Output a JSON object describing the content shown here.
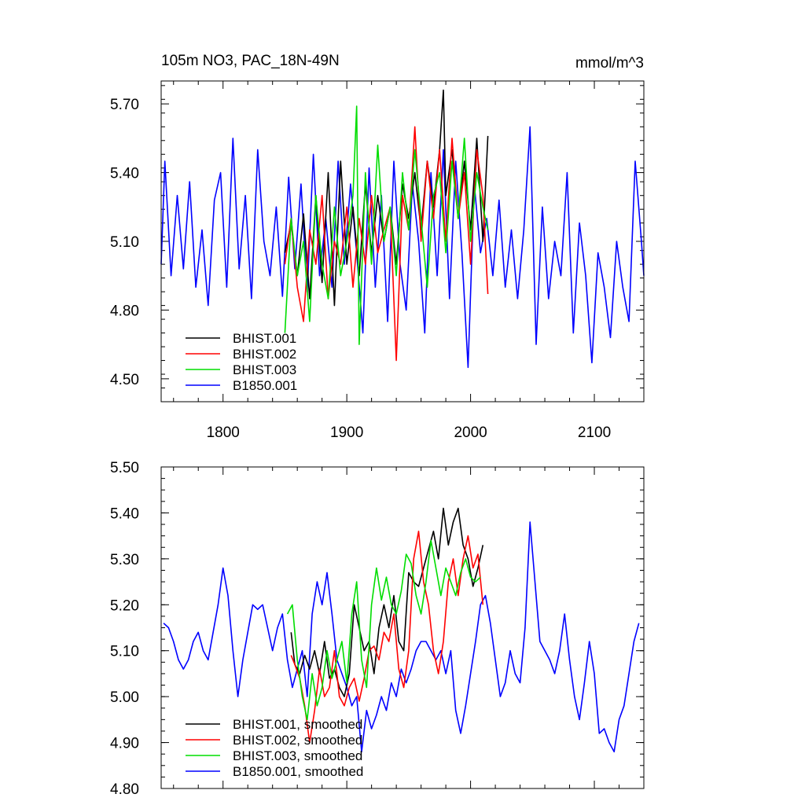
{
  "chart_data": [
    {
      "type": "line",
      "title": "105m NO3, PAC_18N-49N",
      "units": "mmol/m^3",
      "xlim": [
        1750,
        2140
      ],
      "ylim": [
        4.4,
        5.8
      ],
      "x_ticks": [
        1800,
        1900,
        2000,
        2100
      ],
      "x_tick_labels": [
        "1800",
        "1900",
        "2000",
        "2100"
      ],
      "y_ticks": [
        4.5,
        4.8,
        5.1,
        5.4,
        5.7
      ],
      "y_tick_labels": [
        "4.50",
        "4.80",
        "5.10",
        "5.40",
        "5.70"
      ],
      "legend_position": "bottom-left",
      "colors": {
        "BHIST.001": "#000000",
        "BHIST.002": "#ff0000",
        "BHIST.003": "#00dd00",
        "B1850.001": "#0000ff"
      },
      "series": [
        {
          "name": "BHIST.001",
          "color": "#000000",
          "x": [
            1850,
            1855,
            1860,
            1865,
            1870,
            1875,
            1880,
            1885,
            1890,
            1895,
            1900,
            1905,
            1910,
            1915,
            1920,
            1925,
            1930,
            1935,
            1940,
            1945,
            1950,
            1955,
            1960,
            1965,
            1970,
            1975,
            1978,
            1980,
            1985,
            1990,
            1995,
            2000,
            2005,
            2010,
            2014
          ],
          "values": [
            5.05,
            5.18,
            4.95,
            5.22,
            4.85,
            5.3,
            4.92,
            5.4,
            4.82,
            5.45,
            5.0,
            5.25,
            4.95,
            5.35,
            5.05,
            5.3,
            5.1,
            5.25,
            5.0,
            5.35,
            5.2,
            5.4,
            5.15,
            5.45,
            5.25,
            5.5,
            5.76,
            5.3,
            5.5,
            5.2,
            5.45,
            5.15,
            5.55,
            5.1,
            5.56
          ]
        },
        {
          "name": "BHIST.002",
          "color": "#ff0000",
          "x": [
            1850,
            1855,
            1860,
            1865,
            1870,
            1875,
            1880,
            1885,
            1890,
            1895,
            1900,
            1905,
            1910,
            1915,
            1920,
            1925,
            1930,
            1935,
            1940,
            1945,
            1950,
            1955,
            1960,
            1965,
            1970,
            1975,
            1980,
            1985,
            1990,
            1995,
            2000,
            2005,
            2010,
            2014
          ],
          "values": [
            5.0,
            5.2,
            4.9,
            4.75,
            5.15,
            5.0,
            5.3,
            4.85,
            5.1,
            5.0,
            5.25,
            4.9,
            5.2,
            5.0,
            5.3,
            5.05,
            5.15,
            5.25,
            4.58,
            5.3,
            5.15,
            5.6,
            5.1,
            5.45,
            5.2,
            5.5,
            5.1,
            5.55,
            5.2,
            5.4,
            5.0,
            5.5,
            5.3,
            4.87
          ]
        },
        {
          "name": "BHIST.003",
          "color": "#00dd00",
          "x": [
            1850,
            1855,
            1860,
            1865,
            1870,
            1875,
            1880,
            1885,
            1890,
            1895,
            1900,
            1905,
            1908,
            1910,
            1915,
            1920,
            1925,
            1930,
            1935,
            1940,
            1945,
            1950,
            1955,
            1960,
            1965,
            1970,
            1975,
            1980,
            1985,
            1990,
            1995,
            2000,
            2005,
            2010,
            2014
          ],
          "values": [
            4.7,
            5.2,
            4.95,
            5.1,
            4.75,
            5.3,
            5.0,
            4.85,
            5.25,
            4.95,
            5.1,
            5.3,
            5.69,
            4.65,
            5.4,
            5.0,
            5.52,
            5.1,
            5.25,
            4.95,
            5.4,
            5.15,
            5.5,
            5.2,
            4.9,
            5.3,
            5.4,
            5.05,
            5.45,
            5.2,
            5.55,
            5.1,
            5.4,
            5.25,
            5.15
          ]
        },
        {
          "name": "B1850.001",
          "color": "#0000ff",
          "x": [
            1750,
            1753,
            1758,
            1763,
            1768,
            1773,
            1778,
            1783,
            1788,
            1793,
            1798,
            1803,
            1808,
            1813,
            1818,
            1823,
            1828,
            1833,
            1838,
            1843,
            1848,
            1853,
            1858,
            1863,
            1868,
            1873,
            1878,
            1883,
            1888,
            1893,
            1898,
            1903,
            1908,
            1913,
            1918,
            1923,
            1928,
            1933,
            1938,
            1943,
            1948,
            1953,
            1958,
            1963,
            1968,
            1973,
            1978,
            1983,
            1988,
            1993,
            1998,
            2003,
            2008,
            2013,
            2018,
            2023,
            2028,
            2033,
            2038,
            2043,
            2048,
            2053,
            2058,
            2063,
            2068,
            2073,
            2078,
            2083,
            2088,
            2093,
            2098,
            2103,
            2108,
            2113,
            2118,
            2123,
            2128,
            2133,
            2138,
            2140
          ],
          "values": [
            5.0,
            5.45,
            4.95,
            5.3,
            4.98,
            5.36,
            4.9,
            5.15,
            4.82,
            5.28,
            5.4,
            4.9,
            5.55,
            4.98,
            5.3,
            4.85,
            5.5,
            5.1,
            4.95,
            5.25,
            4.86,
            5.38,
            4.98,
            5.35,
            4.88,
            5.48,
            4.95,
            5.2,
            4.9,
            5.45,
            5.0,
            5.35,
            5.05,
            4.7,
            5.42,
            4.9,
            5.3,
            4.75,
            5.45,
            5.0,
            4.8,
            5.35,
            5.1,
            4.7,
            5.4,
            4.95,
            5.5,
            4.85,
            5.45,
            5.05,
            4.55,
            5.35,
            5.05,
            5.2,
            4.95,
            5.28,
            4.9,
            5.15,
            4.85,
            5.15,
            5.6,
            4.65,
            5.25,
            4.85,
            5.1,
            4.95,
            5.4,
            4.7,
            5.18,
            4.95,
            4.57,
            5.05,
            4.9,
            4.68,
            5.1,
            4.9,
            4.75,
            5.45,
            5.1,
            4.95
          ]
        }
      ],
      "legend": [
        "BHIST.001",
        "BHIST.002",
        "BHIST.003",
        "B1850.001"
      ]
    },
    {
      "type": "line",
      "title": "",
      "xlim": [
        1750,
        2140
      ],
      "ylim": [
        4.8,
        5.5
      ],
      "x_ticks": [
        1800,
        1900,
        2000,
        2100
      ],
      "y_ticks": [
        4.8,
        4.9,
        5.0,
        5.1,
        5.2,
        5.3,
        5.4,
        5.5
      ],
      "y_tick_labels": [
        "4.80",
        "4.90",
        "5.00",
        "5.10",
        "5.20",
        "5.30",
        "5.40",
        "5.50"
      ],
      "legend_position": "bottom-left",
      "series": [
        {
          "name": "BHIST.001, smoothed",
          "color": "#000000",
          "x": [
            1855,
            1858,
            1862,
            1866,
            1870,
            1874,
            1878,
            1882,
            1886,
            1890,
            1894,
            1898,
            1902,
            1906,
            1910,
            1914,
            1918,
            1922,
            1926,
            1930,
            1934,
            1938,
            1942,
            1946,
            1950,
            1954,
            1958,
            1962,
            1966,
            1970,
            1974,
            1978,
            1982,
            1986,
            1990,
            1994,
            1998,
            2002,
            2006,
            2010
          ],
          "values": [
            5.14,
            5.07,
            5.05,
            5.09,
            5.06,
            5.1,
            5.05,
            5.12,
            5.04,
            5.06,
            5.02,
            5.0,
            5.05,
            5.2,
            5.15,
            5.1,
            5.12,
            5.05,
            5.15,
            5.2,
            5.15,
            5.22,
            5.12,
            5.1,
            5.27,
            5.25,
            5.24,
            5.28,
            5.32,
            5.36,
            5.3,
            5.41,
            5.33,
            5.38,
            5.41,
            5.33,
            5.3,
            5.24,
            5.28,
            5.33
          ]
        },
        {
          "name": "BHIST.002, smoothed",
          "color": "#ff0000",
          "x": [
            1855,
            1858,
            1862,
            1866,
            1870,
            1874,
            1878,
            1882,
            1886,
            1890,
            1894,
            1898,
            1902,
            1906,
            1910,
            1914,
            1918,
            1922,
            1926,
            1930,
            1934,
            1938,
            1942,
            1946,
            1950,
            1954,
            1958,
            1962,
            1966,
            1970,
            1974,
            1978,
            1982,
            1986,
            1990,
            1994,
            1998,
            2002,
            2006,
            2010
          ],
          "values": [
            5.09,
            5.07,
            5.04,
            4.98,
            4.9,
            4.97,
            5.06,
            5.0,
            5.02,
            5.1,
            5.0,
            4.98,
            5.02,
            5.04,
            4.99,
            5.04,
            5.1,
            5.11,
            5.08,
            5.14,
            5.12,
            5.18,
            5.06,
            5.02,
            5.1,
            5.3,
            5.36,
            5.25,
            5.2,
            5.1,
            5.05,
            5.12,
            5.25,
            5.3,
            5.22,
            5.3,
            5.35,
            5.28,
            5.31,
            5.2
          ]
        },
        {
          "name": "BHIST.003, smoothed",
          "color": "#00dd00",
          "x": [
            1852,
            1856,
            1860,
            1864,
            1868,
            1872,
            1876,
            1880,
            1884,
            1888,
            1892,
            1896,
            1900,
            1904,
            1908,
            1912,
            1916,
            1920,
            1924,
            1928,
            1932,
            1936,
            1940,
            1944,
            1948,
            1952,
            1956,
            1960,
            1964,
            1968,
            1972,
            1976,
            1980,
            1984,
            1988,
            1992,
            1996,
            2000,
            2004,
            2008
          ],
          "values": [
            5.18,
            5.2,
            5.08,
            5.0,
            4.95,
            5.05,
            4.98,
            5.02,
            5.1,
            5.04,
            5.08,
            5.12,
            5.03,
            5.18,
            5.25,
            5.08,
            5.02,
            5.2,
            5.28,
            5.21,
            5.26,
            5.2,
            5.18,
            5.23,
            5.31,
            5.29,
            5.22,
            5.18,
            5.25,
            5.34,
            5.28,
            5.22,
            5.28,
            5.25,
            5.22,
            5.27,
            5.3,
            5.26,
            5.25,
            5.26
          ]
        },
        {
          "name": "B1850.001, smoothed",
          "color": "#0000ff",
          "x": [
            1752,
            1756,
            1760,
            1764,
            1768,
            1772,
            1776,
            1780,
            1784,
            1788,
            1792,
            1796,
            1800,
            1804,
            1808,
            1812,
            1816,
            1820,
            1824,
            1828,
            1832,
            1836,
            1840,
            1844,
            1848,
            1852,
            1856,
            1860,
            1864,
            1868,
            1872,
            1876,
            1880,
            1884,
            1888,
            1892,
            1896,
            1900,
            1904,
            1908,
            1912,
            1916,
            1920,
            1924,
            1928,
            1932,
            1936,
            1940,
            1944,
            1948,
            1952,
            1956,
            1960,
            1964,
            1968,
            1972,
            1976,
            1980,
            1984,
            1988,
            1992,
            1996,
            2000,
            2004,
            2008,
            2012,
            2016,
            2020,
            2024,
            2028,
            2032,
            2036,
            2040,
            2044,
            2048,
            2052,
            2056,
            2060,
            2064,
            2068,
            2072,
            2076,
            2080,
            2084,
            2088,
            2092,
            2096,
            2100,
            2104,
            2108,
            2112,
            2116,
            2120,
            2124,
            2128,
            2132,
            2136
          ],
          "values": [
            5.16,
            5.15,
            5.12,
            5.08,
            5.06,
            5.08,
            5.12,
            5.14,
            5.1,
            5.08,
            5.14,
            5.2,
            5.28,
            5.22,
            5.1,
            5.0,
            5.08,
            5.14,
            5.2,
            5.19,
            5.2,
            5.15,
            5.1,
            5.15,
            5.18,
            5.08,
            5.02,
            5.06,
            5.1,
            5.0,
            5.18,
            5.25,
            5.2,
            5.27,
            5.18,
            5.08,
            5.05,
            5.02,
            4.98,
            5.0,
            4.88,
            4.97,
            4.93,
            4.96,
            5.0,
            4.97,
            5.03,
            5.0,
            5.06,
            5.03,
            5.06,
            5.1,
            5.12,
            5.12,
            5.1,
            5.08,
            5.1,
            5.05,
            5.1,
            4.97,
            4.92,
            4.98,
            5.05,
            5.12,
            5.2,
            5.22,
            5.16,
            5.08,
            5.0,
            5.03,
            5.1,
            5.05,
            5.03,
            5.15,
            5.38,
            5.25,
            5.12,
            5.1,
            5.08,
            5.05,
            5.1,
            5.18,
            5.08,
            5.0,
            4.95,
            5.03,
            5.12,
            5.05,
            4.92,
            4.93,
            4.9,
            4.88,
            4.95,
            4.98,
            5.05,
            5.12,
            5.16
          ]
        }
      ],
      "legend": [
        "BHIST.001, smoothed",
        "BHIST.002, smoothed",
        "BHIST.003, smoothed",
        "B1850.001, smoothed"
      ]
    }
  ]
}
